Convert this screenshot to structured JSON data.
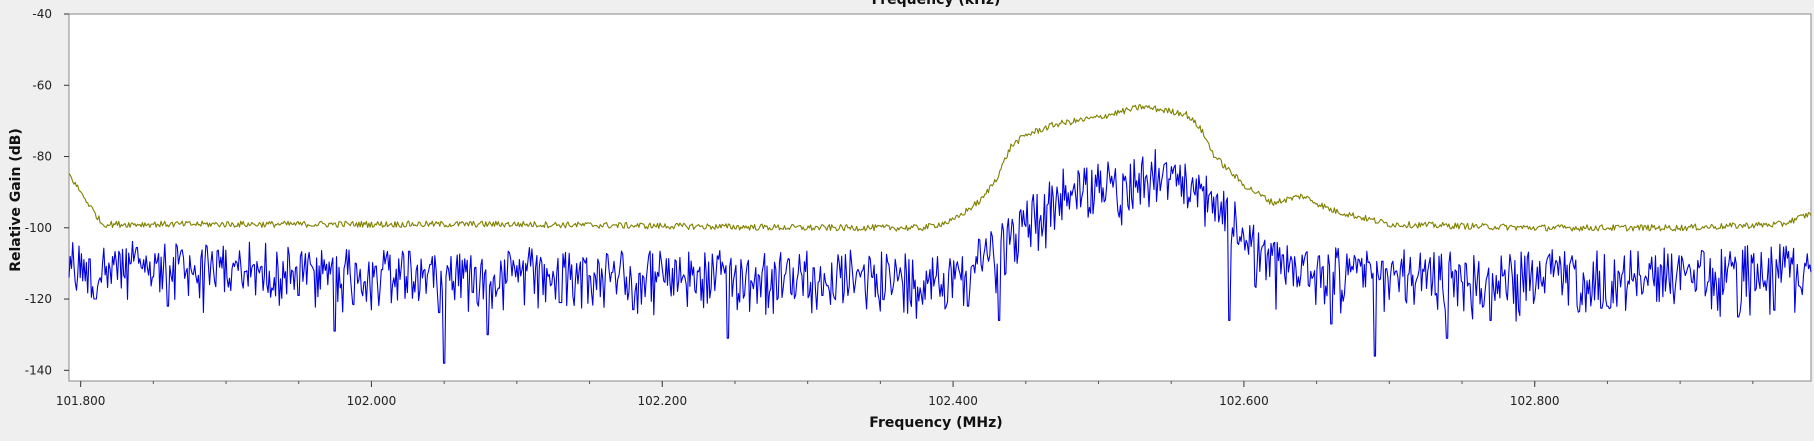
{
  "colors": {
    "background": "#efefef",
    "plot_background": "#ffffff",
    "max_hold_trace": "#808000",
    "spectrum_trace": "#0000e0"
  },
  "chart_data": {
    "type": "line",
    "top_label": "Frequency (kHz)",
    "xlabel": "Frequency (MHz)",
    "ylabel": "Relative Gain (dB)",
    "xlim": [
      101.792,
      102.99
    ],
    "ylim": [
      -143,
      -40
    ],
    "x_ticks": [
      101.8,
      102.0,
      102.2,
      102.4,
      102.6,
      102.8
    ],
    "x_tick_labels": [
      "101.800",
      "102.000",
      "102.200",
      "102.400",
      "102.600",
      "102.800"
    ],
    "y_ticks": [
      -40,
      -60,
      -80,
      -100,
      -120,
      -140
    ],
    "y_tick_labels": [
      "-40",
      "-60",
      "-80",
      "-100",
      "-120",
      "-140"
    ],
    "grid": false,
    "series": [
      {
        "key": "max_hold",
        "color": "#808000",
        "x": [
          101.792,
          101.8,
          101.805,
          101.81,
          101.815,
          101.9,
          102.0,
          102.1,
          102.2,
          102.3,
          102.38,
          102.4,
          102.42,
          102.43,
          102.44,
          102.45,
          102.47,
          102.5,
          102.53,
          102.56,
          102.57,
          102.58,
          102.6,
          102.62,
          102.64,
          102.66,
          102.7,
          102.8,
          102.9,
          102.97,
          102.99
        ],
        "y": [
          -85,
          -90,
          -93,
          -96,
          -99,
          -99,
          -99,
          -99,
          -99.5,
          -100,
          -100,
          -98,
          -92,
          -86,
          -77,
          -74,
          -71,
          -69,
          -66,
          -68,
          -72,
          -80,
          -88,
          -93,
          -91,
          -95,
          -99,
          -100,
          -100,
          -99,
          -96
        ]
      },
      {
        "key": "spectrum",
        "color": "#0000e0",
        "x": [
          101.792,
          101.9,
          102.0,
          102.1,
          102.2,
          102.3,
          102.4,
          102.44,
          102.46,
          102.48,
          102.5,
          102.52,
          102.54,
          102.56,
          102.58,
          102.6,
          102.62,
          102.7,
          102.8,
          102.9,
          102.99
        ],
        "y": [
          -108,
          -109,
          -110,
          -110,
          -111,
          -111,
          -111,
          -100,
          -93,
          -87,
          -86,
          -85,
          -83,
          -85,
          -90,
          -100,
          -108,
          -111,
          -111,
          -110,
          -109
        ]
      }
    ],
    "spikes": [
      {
        "x": 101.81,
        "y": -120
      },
      {
        "x": 101.86,
        "y": -122
      },
      {
        "x": 101.95,
        "y": -119
      },
      {
        "x": 101.975,
        "y": -129
      },
      {
        "x": 102.05,
        "y": -138
      },
      {
        "x": 102.08,
        "y": -130
      },
      {
        "x": 102.13,
        "y": -121
      },
      {
        "x": 102.18,
        "y": -123
      },
      {
        "x": 102.245,
        "y": -131
      },
      {
        "x": 102.31,
        "y": -119
      },
      {
        "x": 102.41,
        "y": -122
      },
      {
        "x": 102.432,
        "y": -126
      },
      {
        "x": 102.59,
        "y": -126
      },
      {
        "x": 102.66,
        "y": -127
      },
      {
        "x": 102.69,
        "y": -136
      },
      {
        "x": 102.74,
        "y": -131
      },
      {
        "x": 102.77,
        "y": -126
      },
      {
        "x": 102.85,
        "y": -122
      },
      {
        "x": 102.94,
        "y": -125
      }
    ]
  }
}
